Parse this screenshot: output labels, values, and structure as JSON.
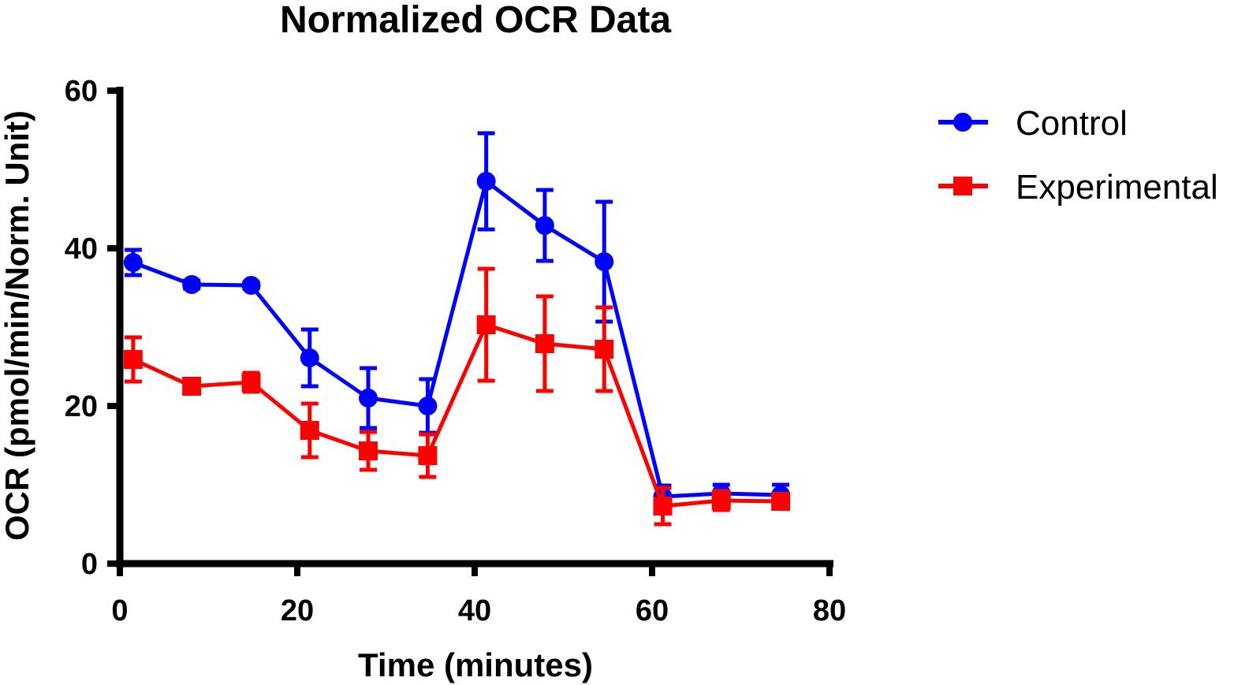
{
  "chart_data": {
    "type": "line",
    "title": "Normalized OCR Data",
    "xlabel": "Time (minutes)",
    "ylabel": "OCR (pmol/min/Norm. Unit)",
    "xlim": [
      0,
      80
    ],
    "ylim": [
      0,
      60
    ],
    "xticks": [
      0,
      20,
      40,
      60,
      80
    ],
    "yticks": [
      0,
      20,
      40,
      60
    ],
    "xtick_labels": [
      "0",
      "20",
      "40",
      "60",
      "80"
    ],
    "ytick_labels": [
      "0",
      "20",
      "40",
      "60"
    ],
    "grid": false,
    "legend_position": "top-right",
    "x": [
      1.5,
      8.1,
      14.8,
      21.4,
      28.0,
      34.7,
      41.3,
      47.9,
      54.6,
      61.2,
      67.8,
      74.5
    ],
    "series": [
      {
        "name": "Control",
        "color": "#0000ff",
        "marker": "circle",
        "values": [
          38.2,
          35.4,
          35.3,
          26.1,
          21.0,
          20.0,
          48.5,
          42.9,
          38.3,
          8.5,
          8.9,
          8.7
        ],
        "errors": [
          1.6,
          0.5,
          0.4,
          3.6,
          3.8,
          3.4,
          6.1,
          4.5,
          7.6,
          1.4,
          1.1,
          1.3
        ]
      },
      {
        "name": "Experimental",
        "color": "#ff0000",
        "marker": "square",
        "values": [
          25.9,
          22.5,
          23.0,
          16.9,
          14.3,
          13.7,
          30.3,
          27.9,
          27.2,
          7.3,
          8.0,
          7.9
        ],
        "errors": [
          2.8,
          0.5,
          1.2,
          3.4,
          2.4,
          2.7,
          7.1,
          6.0,
          5.3,
          2.3,
          1.2,
          0.7
        ]
      }
    ]
  }
}
